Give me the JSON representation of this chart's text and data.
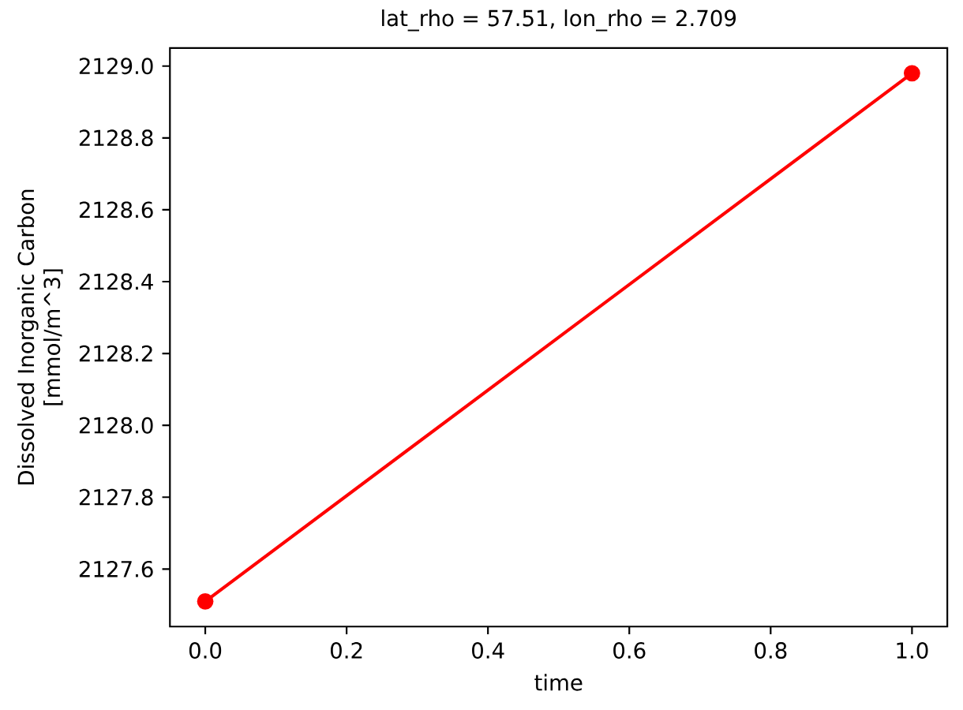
{
  "chart_data": {
    "type": "line",
    "title": "lat_rho = 57.51, lon_rho = 2.709",
    "xlabel": "time",
    "ylabel": "Dissolved Inorganic Carbon [mmol/m^3]",
    "x": [
      0,
      1
    ],
    "values": [
      2127.51,
      2128.98
    ],
    "color": "#ff0000",
    "marker": "circle",
    "line_style": "solid",
    "xlim": [
      -0.05,
      1.05
    ],
    "ylim": [
      2127.44,
      2129.05
    ],
    "xticks": [
      {
        "value": 0,
        "label": "0.0"
      },
      {
        "value": 0.2,
        "label": "0.2"
      },
      {
        "value": 0.4,
        "label": "0.4"
      },
      {
        "value": 0.6,
        "label": "0.6"
      },
      {
        "value": 0.8,
        "label": "0.8"
      },
      {
        "value": 1,
        "label": "1.0"
      }
    ],
    "yticks": [
      2127.6,
      2127.8,
      {
        "value": 2128,
        "label": "2128.0"
      },
      2128.2,
      2128.4,
      2128.6,
      2128.8,
      {
        "value": 2129,
        "label": "2129.0"
      }
    ]
  }
}
